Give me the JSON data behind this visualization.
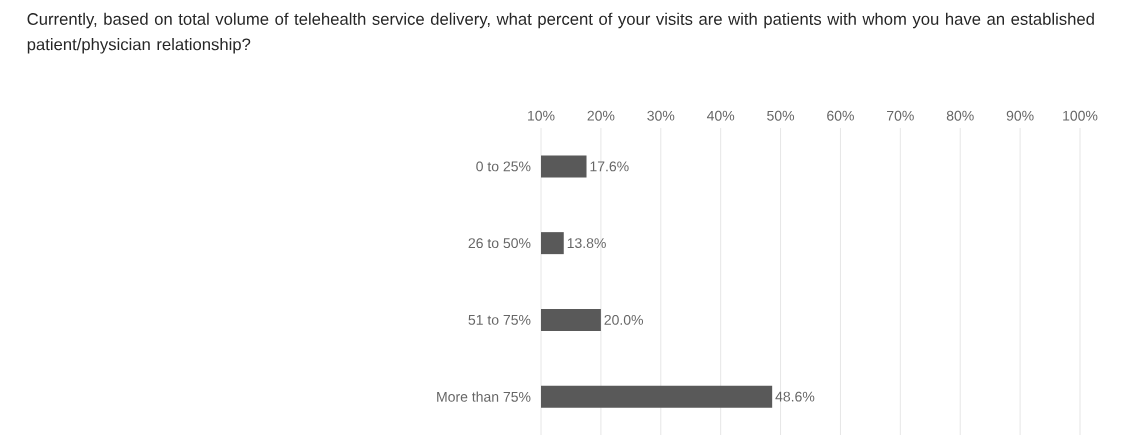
{
  "chart_data": {
    "type": "bar",
    "orientation": "horizontal",
    "title": "Currently, based on total volume of telehealth service delivery, what percent of your visits are with patients with whom you have an established patient/physician relationship?",
    "categories": [
      "0 to 25%",
      "26 to 50%",
      "51 to 75%",
      "More than 75%"
    ],
    "values": [
      17.6,
      13.8,
      20.0,
      48.6
    ],
    "value_labels": [
      "17.6%",
      "13.8%",
      "20.0%",
      "48.6%"
    ],
    "color": "#595959",
    "xlim": [
      10,
      100
    ],
    "xticks": [
      {
        "value": 10,
        "label": "10%"
      },
      {
        "value": 20,
        "label": "20%"
      },
      {
        "value": 30,
        "label": "30%"
      },
      {
        "value": 40,
        "label": "40%"
      },
      {
        "value": 50,
        "label": "50%"
      },
      {
        "value": 60,
        "label": "60%"
      },
      {
        "value": 70,
        "label": "70%"
      },
      {
        "value": 80,
        "label": "80%"
      },
      {
        "value": 90,
        "label": "90%"
      },
      {
        "value": 100,
        "label": "100%"
      }
    ],
    "grid": "x"
  }
}
